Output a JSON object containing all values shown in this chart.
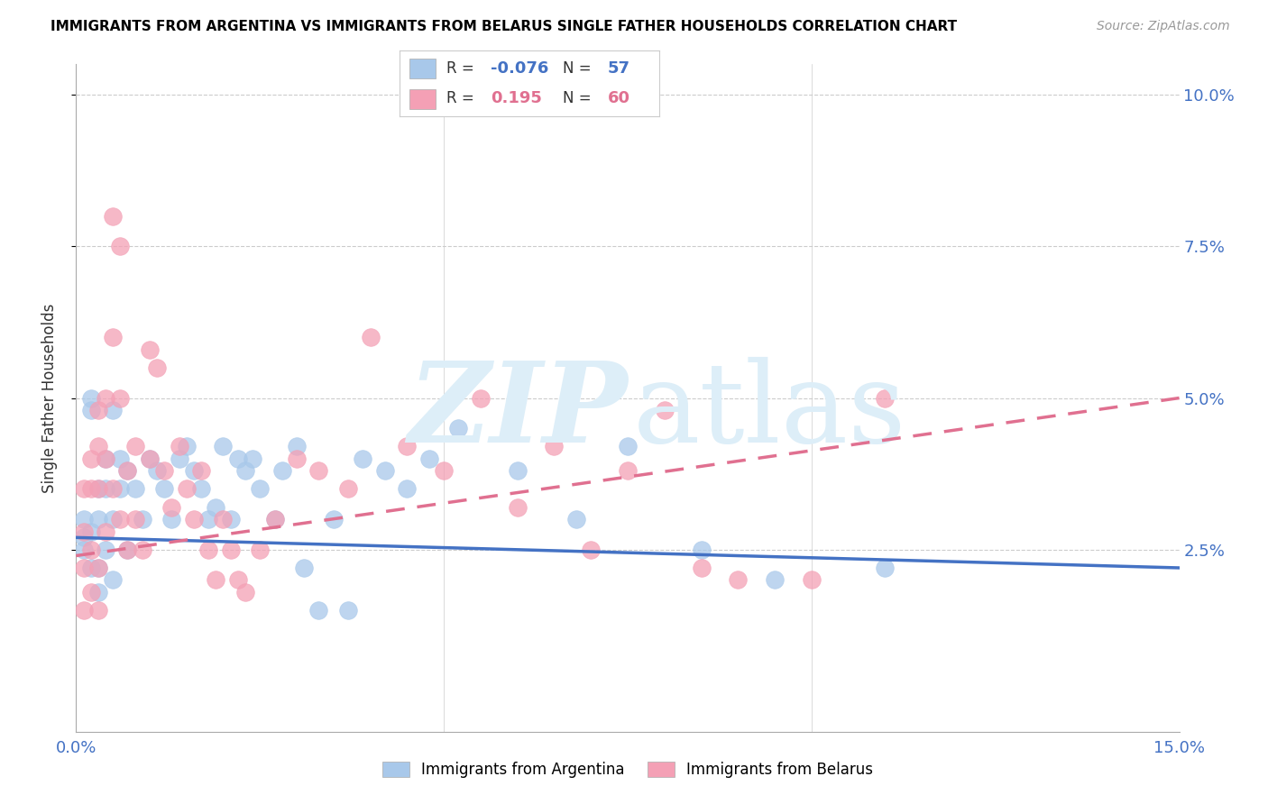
{
  "title": "IMMIGRANTS FROM ARGENTINA VS IMMIGRANTS FROM BELARUS SINGLE FATHER HOUSEHOLDS CORRELATION CHART",
  "source": "Source: ZipAtlas.com",
  "ylabel": "Single Father Households",
  "legend_argentina": "Immigrants from Argentina",
  "legend_belarus": "Immigrants from Belarus",
  "R_argentina": -0.076,
  "N_argentina": 57,
  "R_belarus": 0.195,
  "N_belarus": 60,
  "color_argentina": "#a8c8ea",
  "color_belarus": "#f4a0b5",
  "trend_argentina_color": "#4472c4",
  "trend_belarus_color": "#e07090",
  "xlim": [
    0.0,
    0.15
  ],
  "ylim": [
    -0.005,
    0.105
  ],
  "ytick_positions": [
    0.025,
    0.05,
    0.075,
    0.1
  ],
  "ytick_labels": [
    "2.5%",
    "5.0%",
    "7.5%",
    "10.0%"
  ],
  "xtick_positions": [
    0.0,
    0.05,
    0.1,
    0.15
  ],
  "xtick_labels": [
    "0.0%",
    "",
    "",
    "15.0%"
  ],
  "argentina_x": [
    0.001,
    0.001,
    0.001,
    0.002,
    0.002,
    0.002,
    0.002,
    0.003,
    0.003,
    0.003,
    0.003,
    0.004,
    0.004,
    0.004,
    0.005,
    0.005,
    0.005,
    0.006,
    0.006,
    0.007,
    0.007,
    0.008,
    0.009,
    0.01,
    0.011,
    0.012,
    0.013,
    0.014,
    0.015,
    0.016,
    0.017,
    0.018,
    0.019,
    0.02,
    0.021,
    0.022,
    0.023,
    0.024,
    0.025,
    0.027,
    0.028,
    0.03,
    0.031,
    0.033,
    0.035,
    0.037,
    0.039,
    0.042,
    0.045,
    0.048,
    0.052,
    0.06,
    0.068,
    0.075,
    0.085,
    0.095,
    0.11
  ],
  "argentina_y": [
    0.027,
    0.03,
    0.025,
    0.048,
    0.05,
    0.028,
    0.022,
    0.035,
    0.03,
    0.022,
    0.018,
    0.04,
    0.035,
    0.025,
    0.048,
    0.03,
    0.02,
    0.04,
    0.035,
    0.038,
    0.025,
    0.035,
    0.03,
    0.04,
    0.038,
    0.035,
    0.03,
    0.04,
    0.042,
    0.038,
    0.035,
    0.03,
    0.032,
    0.042,
    0.03,
    0.04,
    0.038,
    0.04,
    0.035,
    0.03,
    0.038,
    0.042,
    0.022,
    0.015,
    0.03,
    0.015,
    0.04,
    0.038,
    0.035,
    0.04,
    0.045,
    0.038,
    0.03,
    0.042,
    0.025,
    0.02,
    0.022
  ],
  "belarus_x": [
    0.001,
    0.001,
    0.001,
    0.001,
    0.002,
    0.002,
    0.002,
    0.002,
    0.003,
    0.003,
    0.003,
    0.003,
    0.003,
    0.004,
    0.004,
    0.004,
    0.005,
    0.005,
    0.005,
    0.006,
    0.006,
    0.006,
    0.007,
    0.007,
    0.008,
    0.008,
    0.009,
    0.01,
    0.01,
    0.011,
    0.012,
    0.013,
    0.014,
    0.015,
    0.016,
    0.017,
    0.018,
    0.019,
    0.02,
    0.021,
    0.022,
    0.023,
    0.025,
    0.027,
    0.03,
    0.033,
    0.037,
    0.04,
    0.045,
    0.05,
    0.055,
    0.06,
    0.065,
    0.07,
    0.075,
    0.08,
    0.085,
    0.09,
    0.1,
    0.11
  ],
  "belarus_y": [
    0.035,
    0.028,
    0.022,
    0.015,
    0.04,
    0.035,
    0.025,
    0.018,
    0.048,
    0.042,
    0.035,
    0.022,
    0.015,
    0.05,
    0.04,
    0.028,
    0.08,
    0.06,
    0.035,
    0.075,
    0.05,
    0.03,
    0.038,
    0.025,
    0.042,
    0.03,
    0.025,
    0.058,
    0.04,
    0.055,
    0.038,
    0.032,
    0.042,
    0.035,
    0.03,
    0.038,
    0.025,
    0.02,
    0.03,
    0.025,
    0.02,
    0.018,
    0.025,
    0.03,
    0.04,
    0.038,
    0.035,
    0.06,
    0.042,
    0.038,
    0.05,
    0.032,
    0.042,
    0.025,
    0.038,
    0.048,
    0.022,
    0.02,
    0.02,
    0.05
  ]
}
